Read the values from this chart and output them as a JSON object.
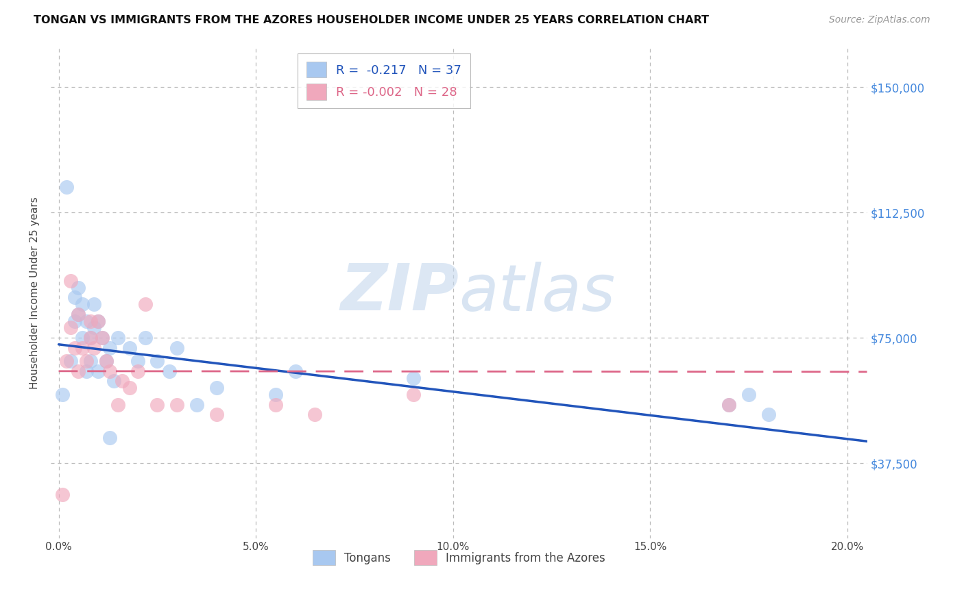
{
  "title": "TONGAN VS IMMIGRANTS FROM THE AZORES HOUSEHOLDER INCOME UNDER 25 YEARS CORRELATION CHART",
  "source": "Source: ZipAtlas.com",
  "ylabel": "Householder Income Under 25 years",
  "xlabel_ticks": [
    "0.0%",
    "5.0%",
    "10.0%",
    "15.0%",
    "20.0%"
  ],
  "xlabel_vals": [
    0.0,
    0.05,
    0.1,
    0.15,
    0.2
  ],
  "ylabel_ticks": [
    "$37,500",
    "$75,000",
    "$112,500",
    "$150,000"
  ],
  "ylabel_vals": [
    37500,
    75000,
    112500,
    150000
  ],
  "xlim": [
    -0.002,
    0.205
  ],
  "ylim": [
    15000,
    162000
  ],
  "legend1_R": "-0.217",
  "legend1_N": "37",
  "legend2_R": "-0.002",
  "legend2_N": "28",
  "watermark_zip": "ZIP",
  "watermark_atlas": "atlas",
  "blue_color": "#a8c8f0",
  "pink_color": "#f0a8bc",
  "line_blue": "#2255bb",
  "line_pink": "#dd6688",
  "tongan_x": [
    0.001,
    0.002,
    0.003,
    0.004,
    0.004,
    0.005,
    0.005,
    0.006,
    0.006,
    0.007,
    0.007,
    0.008,
    0.008,
    0.009,
    0.009,
    0.01,
    0.01,
    0.011,
    0.012,
    0.013,
    0.014,
    0.015,
    0.018,
    0.02,
    0.022,
    0.025,
    0.028,
    0.03,
    0.035,
    0.04,
    0.055,
    0.06,
    0.09,
    0.17,
    0.175,
    0.18,
    0.013
  ],
  "tongan_y": [
    58000,
    120000,
    68000,
    80000,
    87000,
    82000,
    90000,
    75000,
    85000,
    65000,
    80000,
    68000,
    75000,
    78000,
    85000,
    80000,
    65000,
    75000,
    68000,
    72000,
    62000,
    75000,
    72000,
    68000,
    75000,
    68000,
    65000,
    72000,
    55000,
    60000,
    58000,
    65000,
    63000,
    55000,
    58000,
    52000,
    45000
  ],
  "azores_x": [
    0.001,
    0.002,
    0.003,
    0.003,
    0.004,
    0.005,
    0.005,
    0.006,
    0.007,
    0.008,
    0.008,
    0.009,
    0.01,
    0.011,
    0.012,
    0.013,
    0.015,
    0.016,
    0.018,
    0.02,
    0.022,
    0.025,
    0.03,
    0.04,
    0.055,
    0.065,
    0.09,
    0.17
  ],
  "azores_y": [
    28000,
    68000,
    92000,
    78000,
    72000,
    65000,
    82000,
    72000,
    68000,
    75000,
    80000,
    72000,
    80000,
    75000,
    68000,
    65000,
    55000,
    62000,
    60000,
    65000,
    85000,
    55000,
    55000,
    52000,
    55000,
    52000,
    58000,
    55000
  ],
  "blue_trendline": [
    0.0,
    0.205,
    73000,
    44000
  ],
  "pink_trendline": [
    0.0,
    0.205,
    65000,
    64800
  ]
}
